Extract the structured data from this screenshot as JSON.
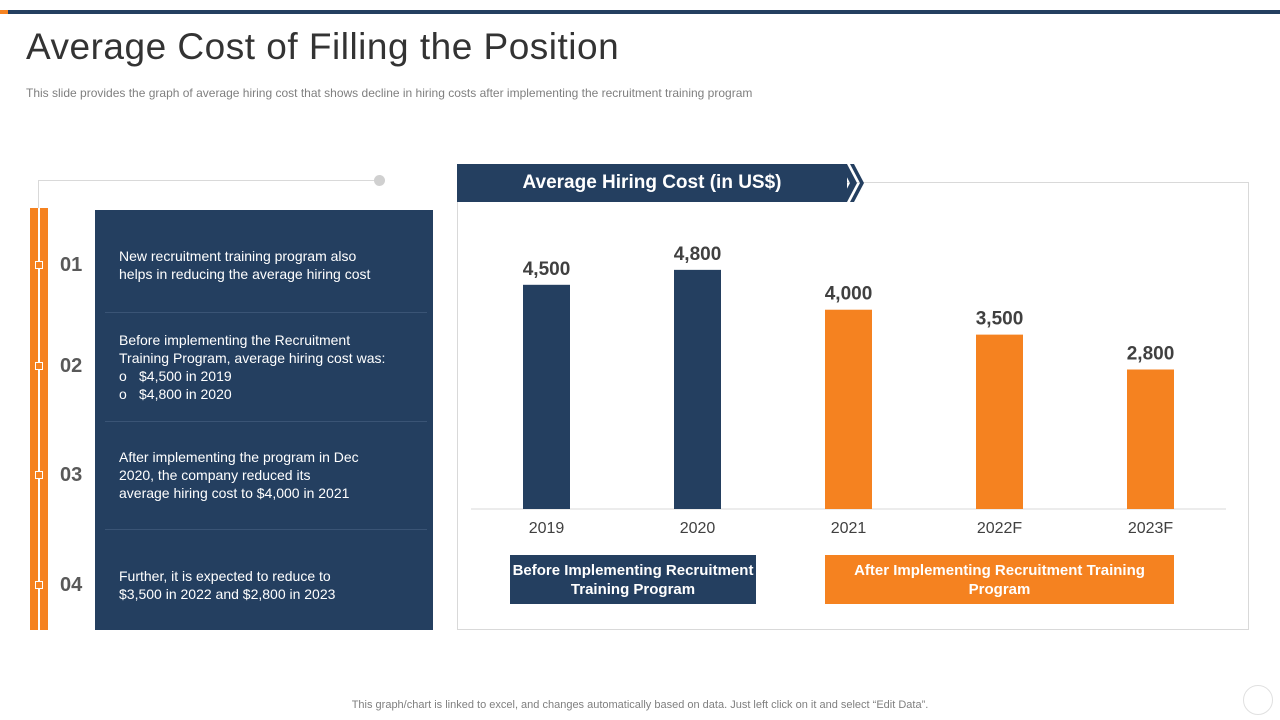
{
  "title": "Average Cost of Filling the Position",
  "subtitle": "This slide provides  the graph of average  hiring cost that shows decline  in hiring costs after implementing the recruitment training program",
  "items": [
    {
      "number": "01",
      "lines": [
        "New recruitment training program also",
        "helps in reducing the average hiring cost"
      ]
    },
    {
      "number": "02",
      "lines": [
        "Before implementing the Recruitment",
        "Training Program, average hiring cost was:"
      ],
      "bullets": [
        {
          "mark": "o",
          "text": "$4,500 in 2019"
        },
        {
          "mark": "o",
          "text": "$4,800 in 2020"
        }
      ]
    },
    {
      "number": "03",
      "lines": [
        "After implementing the program in Dec",
        "2020, the company reduced its",
        "average hiring cost to $4,000 in 2021"
      ]
    },
    {
      "number": "04",
      "lines": [
        "Further, it is expected to reduce to",
        "$3,500 in 2022 and $2,800 in 2023"
      ]
    }
  ],
  "legend": {
    "before": "Before Implementing Recruitment Training Program",
    "after": "After Implementing Recruitment Training Program"
  },
  "footer": "This graph/chart is linked to excel,  and changes automatically based on data. Just left click on it and select “Edit Data”.",
  "colors": {
    "navy": "#243f60",
    "orange": "#f58220"
  },
  "chart_data": {
    "type": "bar",
    "title": "Average Hiring Cost (in US$)",
    "categories": [
      "2019",
      "2020",
      "2021",
      "2022F",
      "2023F"
    ],
    "values": [
      4500,
      4800,
      4000,
      3500,
      2800
    ],
    "value_labels": [
      "4,500",
      "4,800",
      "4,000",
      "3,500",
      "2,800"
    ],
    "bar_colors": [
      "#243f60",
      "#243f60",
      "#f58220",
      "#f58220",
      "#f58220"
    ],
    "ylim": [
      0,
      5600
    ],
    "xlabel": "",
    "ylabel": "",
    "grid": false
  }
}
